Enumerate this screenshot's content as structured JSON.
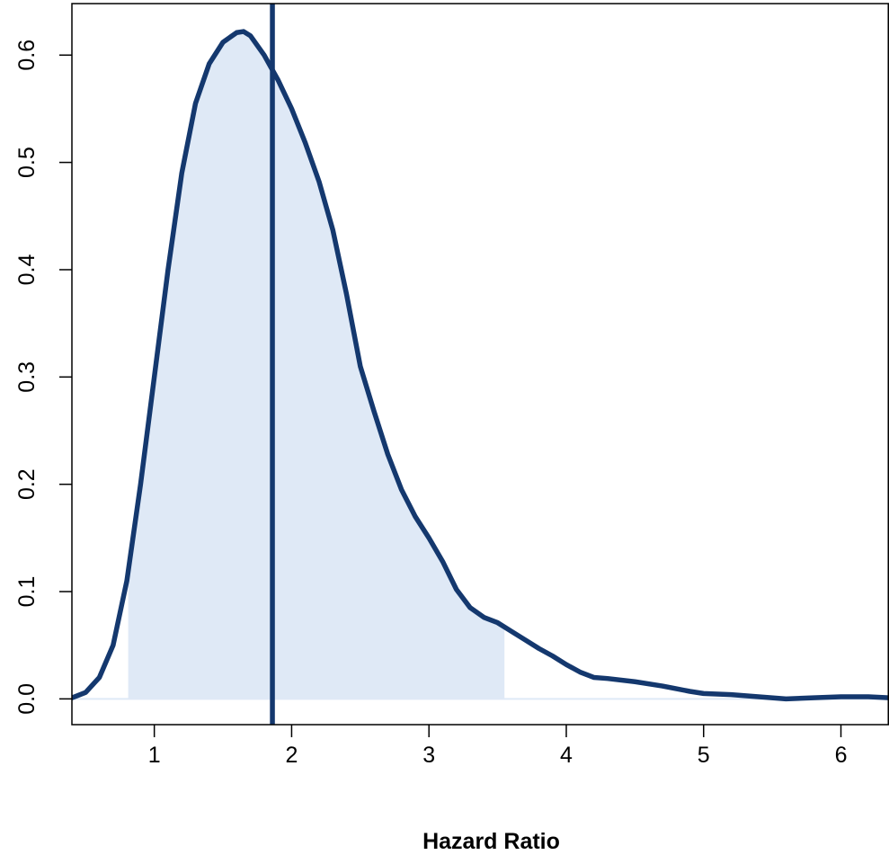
{
  "chart_data": {
    "type": "area",
    "title": "",
    "xlabel": "Hazard Ratio",
    "ylabel": "",
    "xlim": [
      0.4,
      6.35
    ],
    "ylim": [
      -0.024,
      0.648
    ],
    "x_ticks": [
      1,
      2,
      3,
      4,
      5,
      6
    ],
    "y_ticks": [
      0.0,
      0.1,
      0.2,
      0.3,
      0.4,
      0.5,
      0.6
    ],
    "x_tick_labels": [
      "1",
      "2",
      "3",
      "4",
      "5",
      "6"
    ],
    "y_tick_labels": [
      "0.0",
      "0.1",
      "0.2",
      "0.3",
      "0.4",
      "0.5",
      "0.6"
    ],
    "grid": false,
    "density_curve": {
      "x": [
        0.4,
        0.5,
        0.6,
        0.7,
        0.8,
        0.9,
        1.0,
        1.1,
        1.2,
        1.3,
        1.4,
        1.5,
        1.6,
        1.65,
        1.7,
        1.8,
        1.9,
        2.0,
        2.1,
        2.2,
        2.3,
        2.4,
        2.5,
        2.6,
        2.7,
        2.8,
        2.9,
        3.0,
        3.1,
        3.2,
        3.3,
        3.4,
        3.5,
        3.6,
        3.7,
        3.8,
        3.9,
        4.0,
        4.1,
        4.2,
        4.3,
        4.5,
        4.7,
        4.9,
        5.0,
        5.2,
        5.4,
        5.6,
        5.8,
        6.0,
        6.2,
        6.35
      ],
      "y": [
        0.001,
        0.006,
        0.02,
        0.05,
        0.11,
        0.2,
        0.3,
        0.4,
        0.49,
        0.555,
        0.592,
        0.612,
        0.621,
        0.622,
        0.618,
        0.6,
        0.577,
        0.55,
        0.518,
        0.482,
        0.437,
        0.377,
        0.31,
        0.268,
        0.228,
        0.195,
        0.17,
        0.15,
        0.128,
        0.102,
        0.085,
        0.076,
        0.071,
        0.063,
        0.055,
        0.047,
        0.04,
        0.032,
        0.025,
        0.02,
        0.019,
        0.016,
        0.012,
        0.007,
        0.005,
        0.004,
        0.002,
        0.0,
        0.001,
        0.002,
        0.002,
        0.001
      ]
    },
    "shaded_interval": [
      0.81,
      3.55
    ],
    "reference_line_x": 1.86,
    "colors": {
      "line": "#14386e",
      "fill": "#dfe9f6"
    }
  }
}
